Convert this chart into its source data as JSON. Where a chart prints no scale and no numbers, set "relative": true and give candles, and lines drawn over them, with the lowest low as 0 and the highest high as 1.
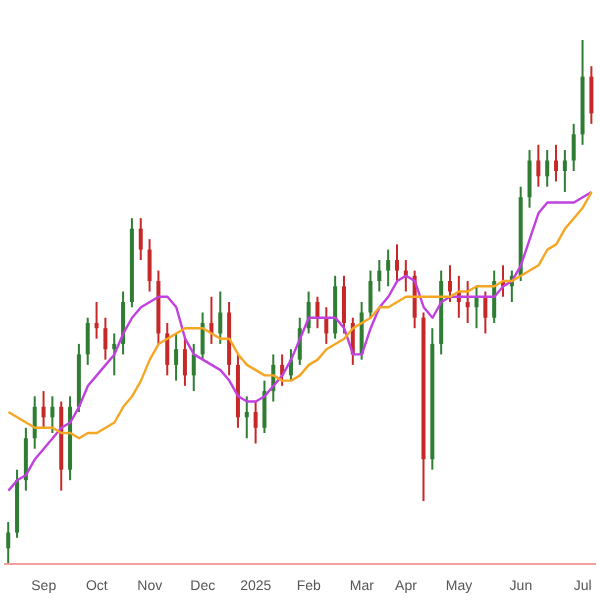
{
  "chart_data": {
    "type": "candlestick",
    "relative": true,
    "tick_labels": "x",
    "marker": "none",
    "categories": [
      null,
      null,
      null,
      null,
      "Sep",
      null,
      null,
      null,
      null,
      null,
      "Oct",
      null,
      null,
      null,
      null,
      null,
      "Nov",
      null,
      null,
      null,
      null,
      null,
      "Dec",
      null,
      null,
      null,
      null,
      null,
      "2025",
      null,
      null,
      null,
      null,
      null,
      "Feb",
      null,
      null,
      null,
      null,
      null,
      "Mar",
      null,
      null,
      null,
      null,
      "Apr",
      null,
      null,
      null,
      null,
      null,
      "May",
      null,
      null,
      null,
      null,
      null,
      null,
      "Jun",
      null,
      null,
      null,
      null,
      null,
      null,
      "Jul",
      null
    ],
    "ohlc": [
      [
        0.03,
        0.08,
        0,
        0.06
      ],
      [
        0.06,
        0.18,
        0.05,
        0.16
      ],
      [
        0.16,
        0.26,
        0.14,
        0.24
      ],
      [
        0.24,
        0.32,
        0.22,
        0.3
      ],
      [
        0.3,
        0.33,
        0.26,
        0.28
      ],
      [
        0.28,
        0.32,
        0.25,
        0.3
      ],
      [
        0.3,
        0.31,
        0.14,
        0.18
      ],
      [
        0.18,
        0.32,
        0.16,
        0.3
      ],
      [
        0.3,
        0.42,
        0.29,
        0.4
      ],
      [
        0.4,
        0.47,
        0.38,
        0.46
      ],
      [
        0.46,
        0.5,
        0.43,
        0.45
      ],
      [
        0.45,
        0.47,
        0.39,
        0.41
      ],
      [
        0.41,
        0.44,
        0.36,
        0.42
      ],
      [
        0.42,
        0.52,
        0.4,
        0.5
      ],
      [
        0.5,
        0.66,
        0.49,
        0.64
      ],
      [
        0.64,
        0.66,
        0.58,
        0.6
      ],
      [
        0.6,
        0.62,
        0.52,
        0.54
      ],
      [
        0.54,
        0.56,
        0.42,
        0.44
      ],
      [
        0.44,
        0.46,
        0.36,
        0.38
      ],
      [
        0.38,
        0.44,
        0.35,
        0.41
      ],
      [
        0.41,
        0.43,
        0.34,
        0.36
      ],
      [
        0.36,
        0.42,
        0.33,
        0.4
      ],
      [
        0.4,
        0.48,
        0.39,
        0.46
      ],
      [
        0.46,
        0.51,
        0.42,
        0.44
      ],
      [
        0.44,
        0.52,
        0.42,
        0.48
      ],
      [
        0.48,
        0.5,
        0.36,
        0.38
      ],
      [
        0.38,
        0.4,
        0.26,
        0.28
      ],
      [
        0.28,
        0.32,
        0.24,
        0.29
      ],
      [
        0.29,
        0.31,
        0.23,
        0.26
      ],
      [
        0.26,
        0.35,
        0.25,
        0.33
      ],
      [
        0.33,
        0.4,
        0.31,
        0.38
      ],
      [
        0.38,
        0.4,
        0.34,
        0.36
      ],
      [
        0.36,
        0.41,
        0.35,
        0.39
      ],
      [
        0.39,
        0.47,
        0.38,
        0.45
      ],
      [
        0.45,
        0.52,
        0.44,
        0.5
      ],
      [
        0.5,
        0.51,
        0.45,
        0.47
      ],
      [
        0.47,
        0.49,
        0.42,
        0.44
      ],
      [
        0.44,
        0.55,
        0.43,
        0.53
      ],
      [
        0.53,
        0.55,
        0.44,
        0.46
      ],
      [
        0.46,
        0.47,
        0.38,
        0.4
      ],
      [
        0.4,
        0.5,
        0.39,
        0.48
      ],
      [
        0.48,
        0.56,
        0.47,
        0.54
      ],
      [
        0.54,
        0.58,
        0.52,
        0.56
      ],
      [
        0.56,
        0.6,
        0.53,
        0.58
      ],
      [
        0.58,
        0.61,
        0.54,
        0.56
      ],
      [
        0.56,
        0.58,
        0.52,
        0.55
      ],
      [
        0.55,
        0.56,
        0.45,
        0.47
      ],
      [
        0.47,
        0.48,
        0.12,
        0.2
      ],
      [
        0.2,
        0.45,
        0.18,
        0.42
      ],
      [
        0.42,
        0.56,
        0.4,
        0.54
      ],
      [
        0.54,
        0.57,
        0.5,
        0.52
      ],
      [
        0.52,
        0.55,
        0.47,
        0.5
      ],
      [
        0.5,
        0.54,
        0.46,
        0.49
      ],
      [
        0.49,
        0.53,
        0.45,
        0.51
      ],
      [
        0.51,
        0.52,
        0.44,
        0.47
      ],
      [
        0.47,
        0.56,
        0.46,
        0.54
      ],
      [
        0.54,
        0.57,
        0.51,
        0.53
      ],
      [
        0.53,
        0.56,
        0.5,
        0.55
      ],
      [
        0.55,
        0.72,
        0.54,
        0.7
      ],
      [
        0.7,
        0.79,
        0.68,
        0.77
      ],
      [
        0.77,
        0.8,
        0.72,
        0.74
      ],
      [
        0.74,
        0.79,
        0.72,
        0.77
      ],
      [
        0.77,
        0.8,
        0.73,
        0.75
      ],
      [
        0.75,
        0.79,
        0.71,
        0.77
      ],
      [
        0.77,
        0.84,
        0.75,
        0.82
      ],
      [
        0.82,
        1.0,
        0.8,
        0.93
      ],
      [
        0.93,
        0.95,
        0.84,
        0.86
      ]
    ],
    "colors": [
      "#2e7d32",
      "#2e7d32",
      "#2e7d32",
      "#2e7d32",
      "#c62828",
      "#2e7d32",
      "#c62828",
      "#2e7d32",
      "#2e7d32",
      "#2e7d32",
      "#c62828",
      "#c62828",
      "#2e7d32",
      "#2e7d32",
      "#2e7d32",
      "#c62828",
      "#c62828",
      "#c62828",
      "#c62828",
      "#2e7d32",
      "#c62828",
      "#2e7d32",
      "#2e7d32",
      "#c62828",
      "#2e7d32",
      "#c62828",
      "#c62828",
      "#2e7d32",
      "#c62828",
      "#2e7d32",
      "#2e7d32",
      "#c62828",
      "#2e7d32",
      "#2e7d32",
      "#2e7d32",
      "#c62828",
      "#c62828",
      "#2e7d32",
      "#c62828",
      "#c62828",
      "#2e7d32",
      "#2e7d32",
      "#2e7d32",
      "#2e7d32",
      "#c62828",
      "#c62828",
      "#c62828",
      "#c62828",
      "#2e7d32",
      "#2e7d32",
      "#c62828",
      "#c62828",
      "#c62828",
      "#2e7d32",
      "#c62828",
      "#2e7d32",
      "#c62828",
      "#2e7d32",
      "#2e7d32",
      "#2e7d32",
      "#c62828",
      "#2e7d32",
      "#c62828",
      "#2e7d32",
      "#2e7d32",
      "#2e7d32",
      "#c62828"
    ],
    "series": [
      {
        "type": "line",
        "color": "#c040e0",
        "values": [
          0.14,
          0.16,
          0.17,
          0.2,
          0.22,
          0.24,
          0.26,
          0.27,
          0.3,
          0.34,
          0.36,
          0.38,
          0.4,
          0.44,
          0.47,
          0.49,
          0.5,
          0.51,
          0.51,
          0.49,
          0.43,
          0.4,
          0.39,
          0.38,
          0.37,
          0.35,
          0.32,
          0.31,
          0.31,
          0.32,
          0.34,
          0.36,
          0.39,
          0.43,
          0.47,
          0.47,
          0.47,
          0.47,
          0.45,
          0.4,
          0.4,
          0.45,
          0.49,
          0.51,
          0.54,
          0.55,
          0.54,
          0.49,
          0.47,
          0.5,
          0.51,
          0.51,
          0.51,
          0.51,
          0.51,
          0.51,
          0.53,
          0.54,
          0.57,
          0.62,
          0.67,
          0.69,
          0.69,
          0.69,
          0.69,
          0.7,
          0.71
        ]
      },
      {
        "type": "line",
        "color": "#f5a623",
        "values": [
          0.29,
          0.28,
          0.27,
          0.26,
          0.26,
          0.26,
          0.25,
          0.25,
          0.24,
          0.25,
          0.25,
          0.26,
          0.27,
          0.3,
          0.32,
          0.35,
          0.39,
          0.42,
          0.43,
          0.44,
          0.45,
          0.45,
          0.45,
          0.44,
          0.43,
          0.43,
          0.4,
          0.38,
          0.37,
          0.36,
          0.36,
          0.35,
          0.35,
          0.36,
          0.38,
          0.39,
          0.41,
          0.42,
          0.43,
          0.45,
          0.46,
          0.47,
          0.49,
          0.49,
          0.5,
          0.51,
          0.51,
          0.51,
          0.51,
          0.51,
          0.51,
          0.52,
          0.52,
          0.53,
          0.53,
          0.53,
          0.54,
          0.54,
          0.55,
          0.56,
          0.57,
          0.6,
          0.61,
          0.64,
          0.66,
          0.68,
          0.71
        ]
      }
    ]
  }
}
